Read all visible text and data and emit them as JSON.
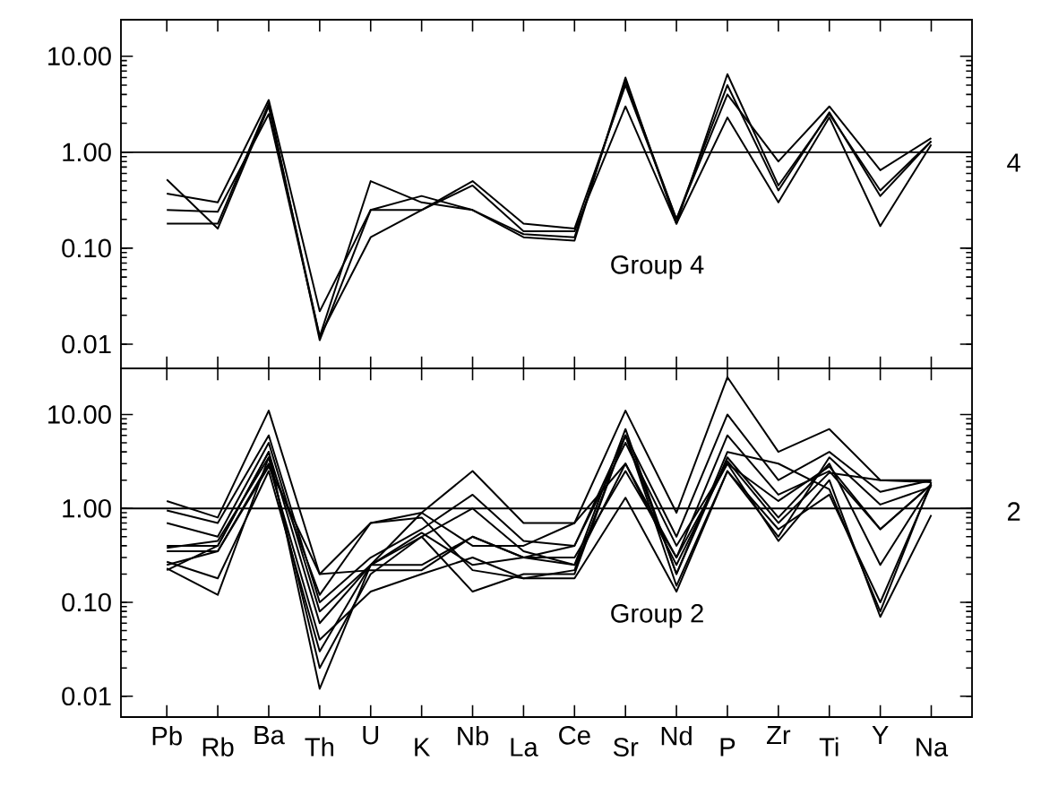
{
  "chart_data": [
    {
      "type": "line",
      "log": true,
      "tick_labels": "y",
      "categories": [
        null,
        null,
        null,
        null,
        null,
        null,
        null,
        null,
        null,
        null,
        null,
        null,
        null,
        null,
        null,
        null
      ],
      "ylim": [
        0.0056,
        24
      ],
      "yticks": [
        {
          "value": 0.01,
          "label": "0.01"
        },
        {
          "value": 0.1,
          "label": "0.10"
        },
        {
          "value": 1,
          "label": "1.00"
        },
        {
          "value": 10,
          "label": "10.00"
        }
      ],
      "ref_lines": [
        {
          "axis": "y",
          "value": 1
        }
      ],
      "annotations": [
        "Group 4",
        "4"
      ],
      "series": [
        {
          "color": "#000000",
          "values": [
            0.52,
            0.16,
            3.0,
            0.012,
            0.5,
            0.3,
            0.25,
            0.13,
            0.12,
            6,
            0.18,
            6.5,
            0.45,
            2.5,
            0.4,
            1.3
          ]
        },
        {
          "color": "#000000",
          "values": [
            0.37,
            0.3,
            3.5,
            0.022,
            0.25,
            0.25,
            0.5,
            0.18,
            0.16,
            5,
            0.2,
            4,
            0.8,
            3,
            0.65,
            1.4
          ]
        },
        {
          "color": "#000000",
          "values": [
            0.25,
            0.24,
            2.5,
            0.012,
            0.13,
            0.25,
            0.45,
            0.15,
            0.15,
            3,
            0.18,
            2.3,
            0.3,
            2.3,
            0.17,
            1.2
          ]
        },
        {
          "color": "#000000",
          "values": [
            0.18,
            0.18,
            3.2,
            0.011,
            0.25,
            0.35,
            0.25,
            0.14,
            0.13,
            5.5,
            0.2,
            5,
            0.4,
            2.6,
            0.35,
            1.3
          ]
        }
      ]
    },
    {
      "type": "line",
      "log": true,
      "categories": [
        "Pb",
        "Rb",
        "Ba",
        "Th",
        "U",
        "K",
        "Nb",
        "La",
        "Ce",
        "Sr",
        "Nd",
        "P",
        "Zr",
        "Ti",
        "Y",
        "Na"
      ],
      "ylim": [
        0.006,
        31
      ],
      "yticks": [
        {
          "value": 0.01,
          "label": "0.01"
        },
        {
          "value": 0.1,
          "label": "0.10"
        },
        {
          "value": 1,
          "label": "1.00"
        },
        {
          "value": 10,
          "label": "10.00"
        }
      ],
      "ref_lines": [
        {
          "axis": "y",
          "value": 1
        }
      ],
      "annotations": [
        "Group 2",
        "2"
      ],
      "series": [
        {
          "color": "#000000",
          "values": [
            1.2,
            0.8,
            11,
            0.2,
            0.7,
            0.9,
            2.5,
            0.7,
            0.7,
            11,
            0.9,
            25,
            4,
            7,
            2,
            2
          ]
        },
        {
          "color": "#000000",
          "values": [
            0.95,
            0.7,
            6,
            0.1,
            0.3,
            0.6,
            1.4,
            0.45,
            0.4,
            6,
            0.5,
            10,
            2,
            4,
            1.5,
            2
          ]
        },
        {
          "color": "#000000",
          "values": [
            0.7,
            0.5,
            5,
            0.08,
            0.25,
            0.5,
            1.0,
            0.35,
            0.25,
            3,
            0.3,
            6,
            1.4,
            2.5,
            0.6,
            1.8
          ]
        },
        {
          "color": "#000000",
          "values": [
            0.4,
            0.4,
            4,
            0.06,
            0.25,
            0.25,
            0.5,
            0.3,
            0.25,
            7,
            0.2,
            3.5,
            0.8,
            3,
            0.25,
            1.8
          ]
        },
        {
          "color": "#000000",
          "values": [
            0.35,
            0.35,
            3,
            0.04,
            0.13,
            0.2,
            0.3,
            0.18,
            0.18,
            1.3,
            0.13,
            2.5,
            0.6,
            1.4,
            0.1,
            1.8
          ]
        },
        {
          "color": "#000000",
          "values": [
            0.27,
            0.18,
            2.5,
            0.03,
            0.25,
            0.55,
            0.25,
            0.3,
            0.4,
            5,
            0.4,
            3,
            0.45,
            2,
            0.07,
            0.85
          ]
        },
        {
          "color": "#000000",
          "values": [
            0.23,
            0.12,
            3.5,
            0.02,
            0.2,
            0.5,
            0.13,
            0.2,
            0.2,
            6,
            0.2,
            4,
            3,
            1.6,
            0.08,
            1.9
          ]
        },
        {
          "color": "#000000",
          "values": [
            0.22,
            0.4,
            4,
            0.012,
            0.25,
            0.9,
            0.4,
            0.4,
            0.7,
            3,
            0.25,
            3.2,
            0.7,
            2.4,
            2,
            1.9
          ]
        },
        {
          "color": "#000000",
          "values": [
            0.38,
            0.45,
            3.5,
            0.12,
            0.7,
            0.8,
            0.22,
            0.18,
            0.22,
            6,
            0.15,
            2.5,
            0.5,
            3.5,
            1.1,
            1.7
          ]
        },
        {
          "color": "#000000",
          "values": [
            0.25,
            0.35,
            2.8,
            0.2,
            0.22,
            0.22,
            0.5,
            0.3,
            0.3,
            2.5,
            0.3,
            3.0,
            1.2,
            2.8,
            0.6,
            1.8
          ]
        }
      ]
    }
  ]
}
